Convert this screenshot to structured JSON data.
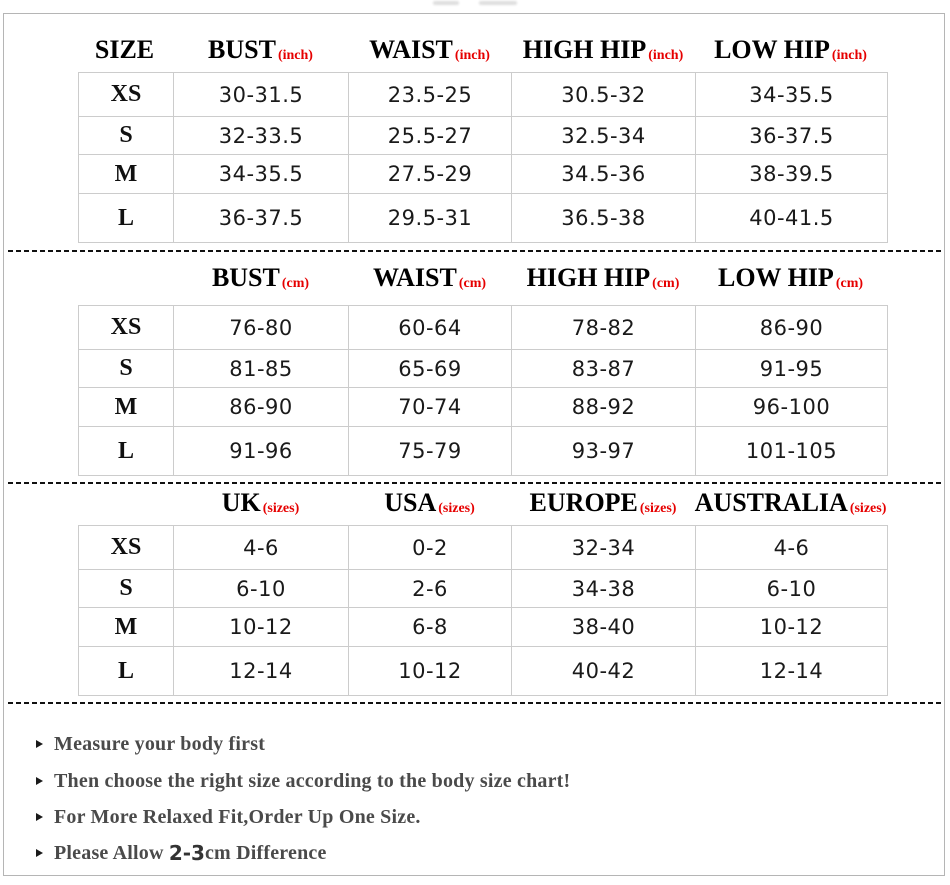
{
  "colors": {
    "accent_red": "#e60000",
    "grid_line": "#cccccc",
    "frame_border": "#b5b5b5",
    "value_text": "#1a1a1a",
    "note_text": "#4a4a4a"
  },
  "sections": [
    {
      "title": "inch measurements",
      "headers": [
        {
          "label": "SIZE",
          "unit": ""
        },
        {
          "label": "BUST",
          "unit": "(inch)"
        },
        {
          "label": "WAIST",
          "unit": "(inch)"
        },
        {
          "label": "HIGH HIP",
          "unit": "(inch)"
        },
        {
          "label": "LOW HIP",
          "unit": "(inch)"
        }
      ],
      "rows": [
        {
          "size": "XS",
          "values": [
            "30-31.5",
            "23.5-25",
            "30.5-32",
            "34-35.5"
          ]
        },
        {
          "size": "S",
          "values": [
            "32-33.5",
            "25.5-27",
            "32.5-34",
            "36-37.5"
          ]
        },
        {
          "size": "M",
          "values": [
            "34-35.5",
            "27.5-29",
            "34.5-36",
            "38-39.5"
          ]
        },
        {
          "size": "L",
          "values": [
            "36-37.5",
            "29.5-31",
            "36.5-38",
            "40-41.5"
          ]
        }
      ]
    },
    {
      "title": "cm measurements",
      "headers": [
        {
          "label": "",
          "unit": ""
        },
        {
          "label": "BUST",
          "unit": "(cm)"
        },
        {
          "label": "WAIST",
          "unit": "(cm)"
        },
        {
          "label": "HIGH HIP",
          "unit": "(cm)"
        },
        {
          "label": "LOW HIP",
          "unit": "(cm)"
        }
      ],
      "rows": [
        {
          "size": "XS",
          "values": [
            "76-80",
            "60-64",
            "78-82",
            "86-90"
          ]
        },
        {
          "size": "S",
          "values": [
            "81-85",
            "65-69",
            "83-87",
            "91-95"
          ]
        },
        {
          "size": "M",
          "values": [
            "86-90",
            "70-74",
            "88-92",
            "96-100"
          ]
        },
        {
          "size": "L",
          "values": [
            "91-96",
            "75-79",
            "93-97",
            "101-105"
          ]
        }
      ]
    },
    {
      "title": "international sizes",
      "headers": [
        {
          "label": "",
          "unit": ""
        },
        {
          "label": "UK ",
          "unit": "(sizes)"
        },
        {
          "label": "USA",
          "unit": "(sizes)"
        },
        {
          "label": "EUROPE",
          "unit": "(sizes)"
        },
        {
          "label": "AUSTRALIA",
          "unit": "(sizes)"
        }
      ],
      "rows": [
        {
          "size": "XS",
          "values": [
            "4-6",
            "0-2",
            "32-34",
            "4-6"
          ]
        },
        {
          "size": "S",
          "values": [
            "6-10",
            "2-6",
            "34-38",
            "6-10"
          ]
        },
        {
          "size": "M",
          "values": [
            "10-12",
            "6-8",
            "38-40",
            "10-12"
          ]
        },
        {
          "size": "L",
          "values": [
            "12-14",
            "10-12",
            "40-42",
            "12-14"
          ]
        }
      ]
    }
  ],
  "notes": [
    {
      "parts": [
        {
          "text": "Measure your body first"
        }
      ]
    },
    {
      "parts": [
        {
          "text": "Then choose the right size according to the body size chart!"
        }
      ]
    },
    {
      "parts": [
        {
          "text": "For More Relaxed Fit,Order Up One Size."
        }
      ]
    },
    {
      "parts": [
        {
          "text": "Please Allow "
        },
        {
          "text": "2-3"
        },
        {
          "text": "cm Difference"
        }
      ]
    }
  ]
}
